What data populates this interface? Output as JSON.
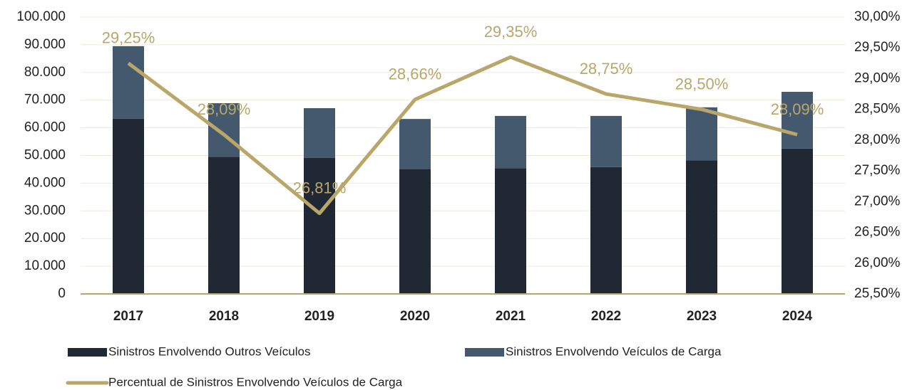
{
  "chart_data": {
    "type": "bar",
    "stacked": true,
    "categories": [
      "2017",
      "2018",
      "2019",
      "2020",
      "2021",
      "2022",
      "2023",
      "2024"
    ],
    "series": [
      {
        "name": "Sinistros Envolvendo Outros Veículos",
        "color": "#1f2833",
        "type": "bar",
        "values": [
          63320,
          49550,
          49110,
          45090,
          45430,
          45810,
          48190,
          52490
        ]
      },
      {
        "name": "Sinistros Envolvendo Veículos de Carga",
        "color": "#44586e",
        "type": "bar",
        "values": [
          26180,
          19350,
          17990,
          18110,
          18870,
          18490,
          19210,
          20510
        ]
      },
      {
        "name": "Percentual de Sinistros Envolvendo Veículos de Carga",
        "color": "#b9a66b",
        "type": "line",
        "axis": "y2",
        "values": [
          29.25,
          28.09,
          26.81,
          28.66,
          29.35,
          28.75,
          28.5,
          28.09
        ],
        "value_labels": [
          "29,25%",
          "28,09%",
          "26,81%",
          "28,66%",
          "29,35%",
          "28,75%",
          "28,50%",
          "28,09%"
        ]
      }
    ],
    "ylim": [
      0,
      100000
    ],
    "yticks": [
      0,
      {
        "value": 10000,
        "label": "10.000"
      },
      {
        "value": 20000,
        "label": "20.000"
      },
      {
        "value": 30000,
        "label": "30.000"
      },
      {
        "value": 40000,
        "label": "40.000"
      },
      {
        "value": 50000,
        "label": "50.000"
      },
      {
        "value": 60000,
        "label": "60.000"
      },
      {
        "value": 70000,
        "label": "70.000"
      },
      {
        "value": 80000,
        "label": "80.000"
      },
      {
        "value": 90000,
        "label": "90.000"
      },
      {
        "value": 100000,
        "label": "100.000"
      }
    ],
    "y2lim": [
      25.5,
      30
    ],
    "y2ticks": [
      {
        "value": 25.5,
        "label": "25,50%"
      },
      {
        "value": 26,
        "label": "26,00%"
      },
      {
        "value": 26.5,
        "label": "26,50%"
      },
      {
        "value": 27,
        "label": "27,00%"
      },
      {
        "value": 27.5,
        "label": "27,50%"
      },
      {
        "value": 28,
        "label": "28,00%"
      },
      {
        "value": 28.5,
        "label": "28,50%"
      },
      {
        "value": 29,
        "label": "29,00%"
      },
      {
        "value": 29.5,
        "label": "29,50%"
      },
      {
        "value": 30,
        "label": "30,00%"
      }
    ],
    "grid": true,
    "legend": "bottom"
  }
}
